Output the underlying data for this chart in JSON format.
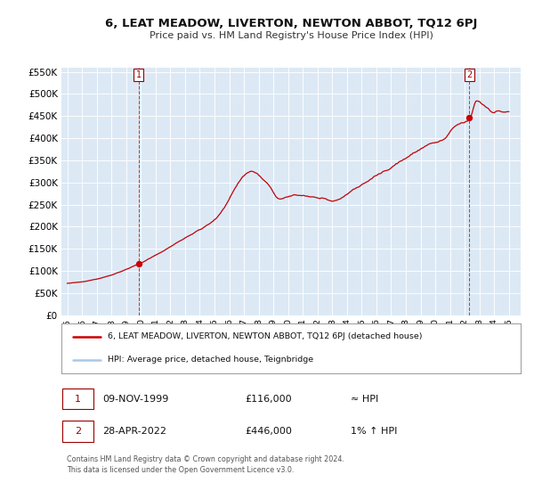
{
  "title": "6, LEAT MEADOW, LIVERTON, NEWTON ABBOT, TQ12 6PJ",
  "subtitle": "Price paid vs. HM Land Registry's House Price Index (HPI)",
  "fig_bg_color": "#ffffff",
  "plot_bg_color": "#dce9f5",
  "hpi_color": "#aac8e8",
  "price_color": "#cc0000",
  "ylim": [
    0,
    560000
  ],
  "yticks": [
    0,
    50000,
    100000,
    150000,
    200000,
    250000,
    300000,
    350000,
    400000,
    450000,
    500000,
    550000
  ],
  "xlim_min": 1994.6,
  "xlim_max": 2025.8,
  "xlabel_years": [
    "1995",
    "1996",
    "1997",
    "1998",
    "1999",
    "2000",
    "2001",
    "2002",
    "2003",
    "2004",
    "2005",
    "2006",
    "2007",
    "2008",
    "2009",
    "2010",
    "2011",
    "2012",
    "2013",
    "2014",
    "2015",
    "2016",
    "2017",
    "2018",
    "2019",
    "2020",
    "2021",
    "2022",
    "2023",
    "2024",
    "2025"
  ],
  "transaction1_date": 1999.86,
  "transaction1_price": 116000,
  "transaction2_date": 2022.32,
  "transaction2_price": 446000,
  "legend_line1": "6, LEAT MEADOW, LIVERTON, NEWTON ABBOT, TQ12 6PJ (detached house)",
  "legend_line2": "HPI: Average price, detached house, Teignbridge",
  "table_row1": [
    "1",
    "09-NOV-1999",
    "£116,000",
    "≈ HPI"
  ],
  "table_row2": [
    "2",
    "28-APR-2022",
    "£446,000",
    "1% ↑ HPI"
  ],
  "footer": "Contains HM Land Registry data © Crown copyright and database right 2024.\nThis data is licensed under the Open Government Licence v3.0.",
  "seed": 42
}
